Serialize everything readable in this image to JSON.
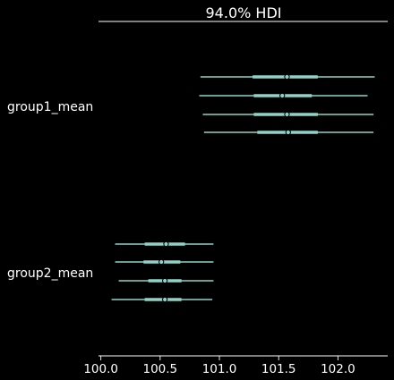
{
  "chart_data": {
    "type": "forest",
    "title": "94.0% HDI",
    "xlim": [
      99.98,
      102.42
    ],
    "xticks": [
      100.0,
      100.5,
      101.0,
      101.5,
      102.0
    ],
    "xtick_labels": [
      "100.0",
      "100.5",
      "101.0",
      "101.5",
      "102.0"
    ],
    "grid": false,
    "colors": {
      "interval": "#8fd3c8",
      "point_fill": "#8fd3c8",
      "point_edge": "#000000",
      "text": "#ffffff",
      "axis": "#ffffff"
    },
    "groups": [
      {
        "label": "group1_mean",
        "chains": [
          {
            "hdi_low": 100.84,
            "hdi_high": 102.31,
            "iqr_low": 101.28,
            "iqr_high": 101.83,
            "mean": 101.57
          },
          {
            "hdi_low": 100.83,
            "hdi_high": 102.25,
            "iqr_low": 101.29,
            "iqr_high": 101.78,
            "mean": 101.53
          },
          {
            "hdi_low": 100.86,
            "hdi_high": 102.3,
            "iqr_low": 101.29,
            "iqr_high": 101.83,
            "mean": 101.57
          },
          {
            "hdi_low": 100.87,
            "hdi_high": 102.3,
            "iqr_low": 101.32,
            "iqr_high": 101.83,
            "mean": 101.58
          }
        ]
      },
      {
        "label": "group2_mean",
        "chains": [
          {
            "hdi_low": 100.12,
            "hdi_high": 100.95,
            "iqr_low": 100.37,
            "iqr_high": 100.71,
            "mean": 100.55
          },
          {
            "hdi_low": 100.12,
            "hdi_high": 100.95,
            "iqr_low": 100.36,
            "iqr_high": 100.67,
            "mean": 100.51
          },
          {
            "hdi_low": 100.15,
            "hdi_high": 100.95,
            "iqr_low": 100.4,
            "iqr_high": 100.68,
            "mean": 100.54
          },
          {
            "hdi_low": 100.09,
            "hdi_high": 100.94,
            "iqr_low": 100.37,
            "iqr_high": 100.68,
            "mean": 100.54
          }
        ]
      }
    ]
  }
}
